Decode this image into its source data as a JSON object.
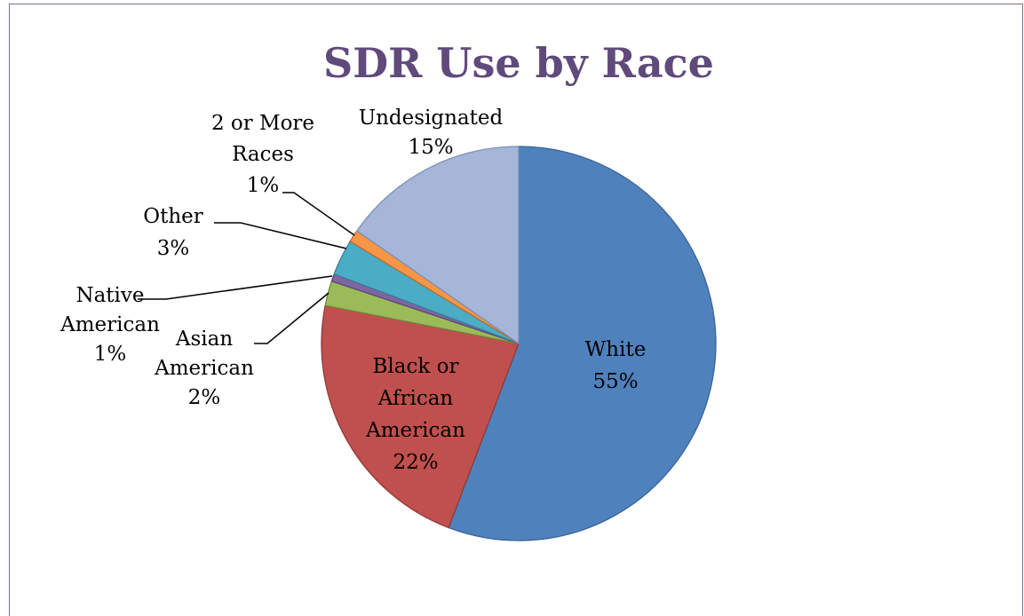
{
  "chart_data": {
    "type": "pie",
    "title": "SDR Use by Race",
    "start_angle_deg": 0,
    "slices": [
      {
        "label_lines": [
          "White",
          "55%"
        ],
        "value": 55,
        "color": "#4f81bd",
        "border": "#3a6595"
      },
      {
        "label_lines": [
          "Black or",
          "African",
          "American",
          "22%"
        ],
        "value": 22,
        "color": "#c0504d",
        "border": "#8f3b39"
      },
      {
        "label_lines": [
          "Asian",
          "American",
          "2%"
        ],
        "value": 2,
        "color": "#9bbb59",
        "border": "#71883f"
      },
      {
        "label_lines": [
          "Native",
          "American",
          "1%"
        ],
        "value": 0.6,
        "color": "#8064a2",
        "border": "#5e4977"
      },
      {
        "label_lines": [
          "Other",
          "3%"
        ],
        "value": 2.9,
        "color": "#4bacc6",
        "border": "#357f93"
      },
      {
        "label_lines": [
          "2 or More",
          "Races",
          "1%"
        ],
        "value": 1,
        "color": "#f79646",
        "border": "#b66d33"
      },
      {
        "label_lines": [
          "Undesignated",
          "15%"
        ],
        "value": 15.1,
        "color": "#a5b6d8",
        "border": "#7d8fb5"
      }
    ]
  }
}
